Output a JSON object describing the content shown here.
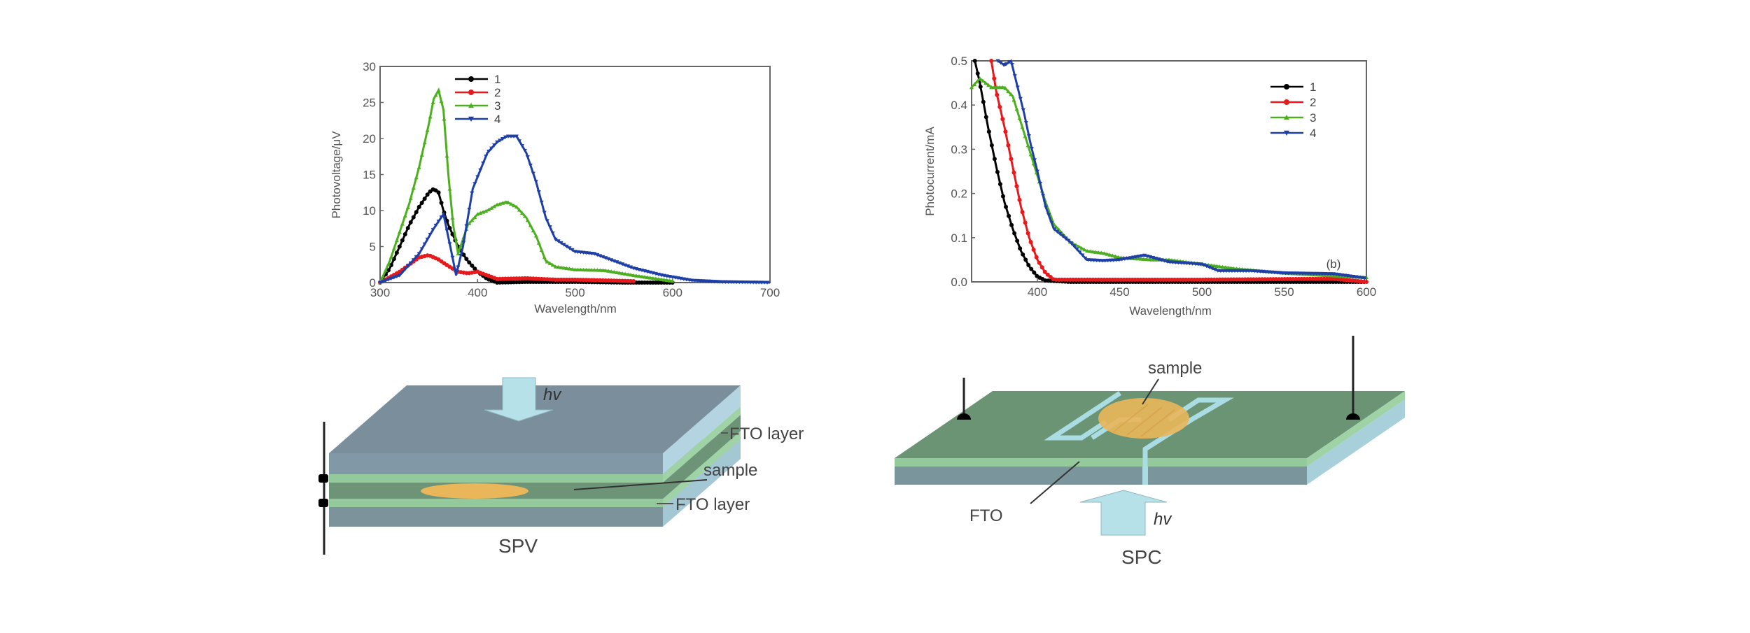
{
  "chart_data": [
    {
      "type": "line",
      "panel": "a",
      "title": "",
      "xlabel": "Wavelength/nm",
      "ylabel": "Photovoltage/μV",
      "xlim": [
        300,
        700
      ],
      "ylim": [
        0,
        30
      ],
      "xticks": [
        300,
        400,
        500,
        600,
        700
      ],
      "yticks": [
        0,
        5,
        10,
        15,
        20,
        25,
        30
      ],
      "xtick_labels": [
        "300",
        "400",
        "500",
        "600",
        "700"
      ],
      "ytick_labels": [
        "0",
        "5",
        "10",
        "15",
        "20",
        "25",
        "30"
      ],
      "grid": false,
      "legend_position": "top-left",
      "series": [
        {
          "name": "1",
          "color": "#000000",
          "marker": "circle",
          "x": [
            300,
            310,
            320,
            330,
            340,
            350,
            355,
            360,
            365,
            370,
            380,
            390,
            400,
            410,
            420,
            450,
            500,
            550,
            600
          ],
          "y": [
            0,
            2,
            5,
            8,
            10.5,
            12.5,
            13,
            12.5,
            10,
            8,
            5,
            3,
            1.5,
            0.5,
            0,
            0.1,
            0.1,
            0,
            0
          ]
        },
        {
          "name": "2",
          "color": "#e41a1c",
          "marker": "circle",
          "x": [
            300,
            320,
            340,
            350,
            360,
            370,
            380,
            390,
            400,
            410,
            420,
            450,
            480,
            500,
            530,
            560
          ],
          "y": [
            0,
            1.5,
            3.5,
            3.8,
            3.2,
            2.3,
            1.5,
            1.3,
            1.5,
            1,
            0.5,
            0.6,
            0.4,
            0.4,
            0.3,
            0.2
          ]
        },
        {
          "name": "3",
          "color": "#4daf20",
          "marker": "triangle-up",
          "x": [
            300,
            310,
            320,
            330,
            340,
            350,
            355,
            360,
            365,
            370,
            375,
            380,
            385,
            390,
            400,
            410,
            420,
            430,
            440,
            450,
            460,
            470,
            480,
            500,
            530,
            560,
            580,
            600
          ],
          "y": [
            0,
            3,
            7,
            11,
            16,
            22,
            25.5,
            26.7,
            24,
            15,
            8,
            4,
            6,
            8,
            9.5,
            10,
            10.8,
            11.2,
            10.5,
            9,
            6.5,
            3,
            2.2,
            1.8,
            1.7,
            1,
            0.6,
            0.2
          ]
        },
        {
          "name": "4",
          "color": "#1f3fa8",
          "marker": "triangle-down",
          "x": [
            300,
            320,
            340,
            355,
            365,
            372,
            378,
            385,
            395,
            410,
            420,
            430,
            440,
            450,
            460,
            470,
            480,
            500,
            520,
            540,
            560,
            590,
            620,
            650,
            700
          ],
          "y": [
            0,
            1,
            4,
            7.5,
            9.5,
            5,
            1,
            5,
            13,
            18,
            19.5,
            20.3,
            20.3,
            18,
            14,
            9,
            6,
            4.3,
            4,
            3,
            2,
            1,
            0.3,
            0.1,
            0
          ]
        }
      ]
    },
    {
      "type": "line",
      "panel": "b",
      "title": "",
      "annotation": "(b)",
      "xlabel": "Wavelength/nm",
      "ylabel": "Photocurrent/mA",
      "xlim": [
        360,
        600
      ],
      "ylim": [
        0,
        0.5
      ],
      "xticks": [
        400,
        450,
        500,
        550,
        600
      ],
      "yticks": [
        0.0,
        0.1,
        0.2,
        0.3,
        0.4,
        0.5
      ],
      "xtick_labels": [
        "400",
        "450",
        "500",
        "550",
        "600"
      ],
      "ytick_labels": [
        "0.0",
        "0.1",
        "0.2",
        "0.3",
        "0.4",
        "0.5"
      ],
      "grid": false,
      "legend_position": "top-right",
      "series": [
        {
          "name": "1",
          "color": "#000000",
          "marker": "circle",
          "x": [
            362,
            365,
            370,
            375,
            380,
            385,
            390,
            395,
            400,
            405,
            420,
            600
          ],
          "y": [
            0.5,
            0.45,
            0.35,
            0.26,
            0.18,
            0.12,
            0.07,
            0.035,
            0.012,
            0.003,
            0,
            0
          ]
        },
        {
          "name": "2",
          "color": "#e41a1c",
          "marker": "circle",
          "x": [
            372,
            375,
            380,
            385,
            390,
            395,
            400,
            405,
            410,
            450,
            500,
            580,
            600
          ],
          "y": [
            0.5,
            0.43,
            0.35,
            0.26,
            0.17,
            0.1,
            0.05,
            0.02,
            0.005,
            0.005,
            0.005,
            0.007,
            0
          ]
        },
        {
          "name": "3",
          "color": "#4daf20",
          "marker": "triangle-up",
          "x": [
            360,
            365,
            372,
            380,
            385,
            390,
            395,
            400,
            405,
            410,
            420,
            430,
            440,
            450,
            470,
            480,
            500,
            520,
            550,
            600
          ],
          "y": [
            0.44,
            0.46,
            0.44,
            0.44,
            0.42,
            0.36,
            0.3,
            0.24,
            0.18,
            0.13,
            0.09,
            0.07,
            0.065,
            0.055,
            0.05,
            0.05,
            0.04,
            0.03,
            0.02,
            0.01
          ]
        },
        {
          "name": "4",
          "color": "#1f3fa8",
          "marker": "triangle-down",
          "x": [
            376,
            380,
            384,
            388,
            392,
            396,
            400,
            405,
            410,
            420,
            430,
            440,
            450,
            465,
            480,
            500,
            510,
            530,
            550,
            580,
            600
          ],
          "y": [
            0.5,
            0.49,
            0.5,
            0.44,
            0.38,
            0.31,
            0.25,
            0.17,
            0.12,
            0.09,
            0.05,
            0.048,
            0.05,
            0.06,
            0.045,
            0.04,
            0.025,
            0.025,
            0.02,
            0.018,
            0.008
          ]
        }
      ]
    }
  ],
  "diagrams": {
    "spv": {
      "caption": "SPV",
      "light_label": "hv",
      "labels": [
        "FTO layer",
        "sample",
        "FTO layer"
      ]
    },
    "spc": {
      "caption": "SPC",
      "light_label": "hv",
      "sample_label": "sample",
      "fto_label": "FTO"
    }
  },
  "colors": {
    "glass_top": "#7d919e",
    "glass_side": "#a9cfdc",
    "fto_green": "#93c99b",
    "sample_layer": "#6e9478",
    "board_top": "#6a9474",
    "sample": "#eab65a",
    "electrode": "#a9dce3",
    "arrow": "#b7e1e8"
  }
}
